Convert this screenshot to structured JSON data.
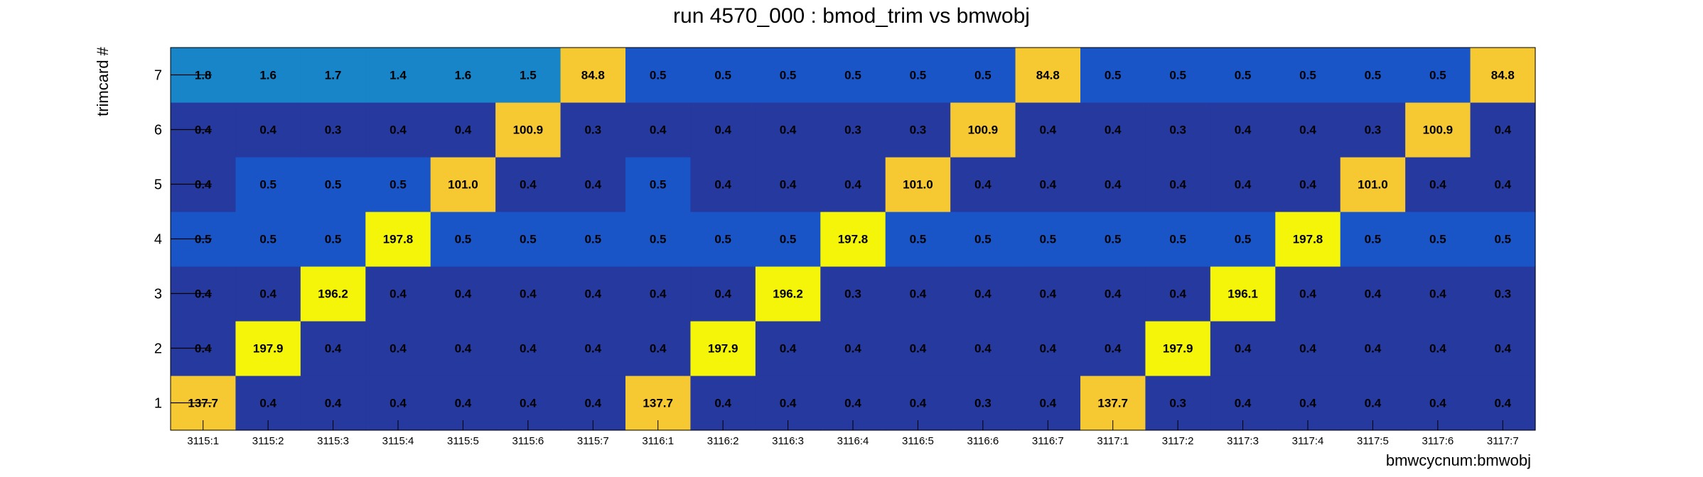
{
  "chart_data": {
    "type": "heatmap",
    "title": "run 4570_000 : bmod_trim vs bmwobj",
    "xlabel": "bmwcycnum:bmwobj",
    "ylabel": "trimcard #",
    "x_categories": [
      "3115:1",
      "3115:2",
      "3115:3",
      "3115:4",
      "3115:5",
      "3115:6",
      "3115:7",
      "3116:1",
      "3116:2",
      "3116:3",
      "3116:4",
      "3116:5",
      "3116:6",
      "3116:7",
      "3117:1",
      "3117:2",
      "3117:3",
      "3117:4",
      "3117:5",
      "3117:6",
      "3117:7"
    ],
    "y_categories": [
      "1",
      "2",
      "3",
      "4",
      "5",
      "6",
      "7"
    ],
    "values": [
      [
        137.7,
        0.4,
        0.4,
        0.4,
        0.4,
        0.4,
        0.4,
        137.7,
        0.4,
        0.4,
        0.4,
        0.4,
        0.3,
        0.4,
        137.7,
        0.3,
        0.4,
        0.4,
        0.4,
        0.4,
        0.4
      ],
      [
        0.4,
        197.9,
        0.4,
        0.4,
        0.4,
        0.4,
        0.4,
        0.4,
        197.9,
        0.4,
        0.4,
        0.4,
        0.4,
        0.4,
        0.4,
        197.9,
        0.4,
        0.4,
        0.4,
        0.4,
        0.4
      ],
      [
        0.4,
        0.4,
        196.2,
        0.4,
        0.4,
        0.4,
        0.4,
        0.4,
        0.4,
        196.2,
        0.3,
        0.4,
        0.4,
        0.4,
        0.4,
        0.4,
        196.1,
        0.4,
        0.4,
        0.4,
        0.3
      ],
      [
        0.5,
        0.5,
        0.5,
        197.8,
        0.5,
        0.5,
        0.5,
        0.5,
        0.5,
        0.5,
        197.8,
        0.5,
        0.5,
        0.5,
        0.5,
        0.5,
        0.5,
        197.8,
        0.5,
        0.5,
        0.5
      ],
      [
        0.4,
        0.5,
        0.5,
        0.5,
        101.0,
        0.4,
        0.4,
        0.5,
        0.4,
        0.4,
        0.4,
        101.0,
        0.4,
        0.4,
        0.4,
        0.4,
        0.4,
        0.4,
        101.0,
        0.4,
        0.4
      ],
      [
        0.4,
        0.4,
        0.3,
        0.4,
        0.4,
        100.9,
        0.3,
        0.4,
        0.4,
        0.4,
        0.3,
        0.3,
        100.9,
        0.4,
        0.4,
        0.3,
        0.4,
        0.4,
        0.3,
        100.9,
        0.4
      ],
      [
        1.8,
        1.6,
        1.7,
        1.4,
        1.6,
        1.5,
        84.8,
        0.5,
        0.5,
        0.5,
        0.5,
        0.5,
        0.5,
        84.8,
        0.5,
        0.5,
        0.5,
        0.5,
        0.5,
        0.5,
        84.8
      ]
    ],
    "colors": {
      "very_low": "#26399f",
      "low": "#1a55c8",
      "mid": "#1885c8",
      "high": "#f6c832",
      "very_high": "#f5f50a"
    }
  }
}
